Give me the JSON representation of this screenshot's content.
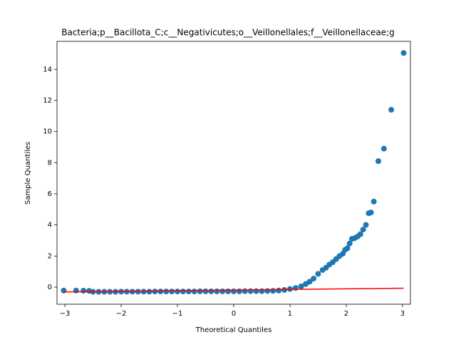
{
  "chart_data": {
    "type": "scatter",
    "title": "Bacteria;p__Bacillota_C;c__Negativicutes;o__Veillonellales;f__Veillonellaceae;g",
    "xlabel": "Theoretical Quantiles",
    "ylabel": "Sample Quantiles",
    "xlim": [
      -3.14,
      3.14
    ],
    "ylim": [
      -1.1,
      15.8
    ],
    "xticks": [
      {
        "value": -3,
        "label": "−3"
      },
      {
        "value": -2,
        "label": "−2"
      },
      {
        "value": -1,
        "label": "−1"
      },
      0,
      1,
      2,
      3
    ],
    "yticks": [
      0,
      2,
      4,
      6,
      8,
      10,
      12,
      14
    ],
    "series": [
      {
        "color": "#1f77b4",
        "style": "points",
        "x": [
          -3.02,
          -2.8,
          -2.67,
          -2.57,
          -2.5,
          -2.4,
          -2.3,
          -2.2,
          -2.1,
          -2.0,
          -1.9,
          -1.8,
          -1.7,
          -1.6,
          -1.5,
          -1.4,
          -1.3,
          -1.2,
          -1.1,
          -1.0,
          -0.9,
          -0.8,
          -0.7,
          -0.6,
          -0.5,
          -0.4,
          -0.3,
          -0.2,
          -0.1,
          0.0,
          0.1,
          0.2,
          0.3,
          0.4,
          0.5,
          0.6,
          0.7,
          0.8,
          0.9,
          1.0,
          1.1,
          1.2,
          1.28,
          1.35,
          1.42,
          1.5,
          1.58,
          1.64,
          1.7,
          1.76,
          1.82,
          1.88,
          1.94,
          1.98,
          2.02,
          2.06,
          2.1,
          2.15,
          2.2,
          2.25,
          2.3,
          2.35,
          2.4,
          2.44,
          2.49,
          2.57,
          2.67,
          2.8,
          3.02
        ],
        "values": [
          -0.22,
          -0.22,
          -0.23,
          -0.24,
          -0.3,
          -0.3,
          -0.3,
          -0.3,
          -0.3,
          -0.29,
          -0.29,
          -0.29,
          -0.29,
          -0.29,
          -0.29,
          -0.28,
          -0.28,
          -0.28,
          -0.28,
          -0.28,
          -0.28,
          -0.28,
          -0.28,
          -0.27,
          -0.27,
          -0.27,
          -0.27,
          -0.27,
          -0.27,
          -0.27,
          -0.27,
          -0.26,
          -0.26,
          -0.26,
          -0.26,
          -0.25,
          -0.24,
          -0.22,
          -0.18,
          -0.12,
          -0.05,
          0.05,
          0.2,
          0.35,
          0.55,
          0.85,
          1.1,
          1.25,
          1.45,
          1.6,
          1.8,
          2.0,
          2.15,
          2.4,
          2.5,
          2.8,
          3.1,
          3.15,
          3.25,
          3.4,
          3.7,
          4.0,
          4.75,
          4.8,
          5.5,
          8.1,
          8.9,
          11.4,
          15.05
        ]
      },
      {
        "color": "#ff0000",
        "style": "line",
        "x": [
          -3.02,
          3.02
        ],
        "values": [
          -0.31,
          -0.07
        ]
      }
    ]
  }
}
